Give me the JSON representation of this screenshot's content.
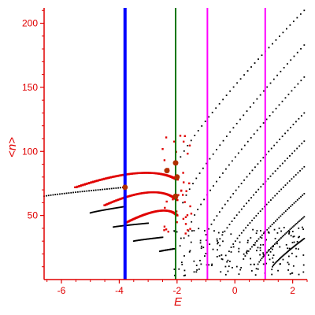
{
  "chart_data": {
    "type": "scatter",
    "title": "",
    "xlabel": "E",
    "ylabel": "<n>",
    "xlim": [
      -6.6,
      2.5
    ],
    "ylim": [
      0,
      212
    ],
    "grid": false,
    "legend": "none",
    "xticks": [
      -6,
      -4,
      -2,
      0,
      2
    ],
    "yticks": [
      50,
      100,
      150,
      200
    ],
    "colors": {
      "axis": "#e00000",
      "series_black": "#000000",
      "series_red": "#e00000",
      "line_blue": "#0000ff",
      "line_green": "#007700",
      "line_magenta": "#ff00ff",
      "marker_brown": "#b03000"
    },
    "vertical_lines": [
      {
        "x": -3.8,
        "color": "#0000ff",
        "width": 4
      },
      {
        "x": -2.05,
        "color": "#007700",
        "width": 2
      },
      {
        "x": -0.95,
        "color": "#ff00ff",
        "width": 2
      },
      {
        "x": 1.05,
        "color": "#ff00ff",
        "width": 2
      }
    ],
    "black_curves": [
      {
        "x0": -6.6,
        "y0": 65,
        "x1": -3.8,
        "y1": 72
      },
      {
        "x0": -5.0,
        "y0": 52,
        "x1": -3.8,
        "y1": 57
      },
      {
        "x0": -4.2,
        "y0": 41,
        "x1": -3.0,
        "y1": 44
      },
      {
        "x0": -3.5,
        "y0": 30,
        "x1": -2.5,
        "y1": 33
      },
      {
        "x0": -2.6,
        "y0": 22,
        "x1": -2.1,
        "y1": 24
      },
      {
        "x0": -2.0,
        "y0": 90,
        "x1": 2.4,
        "y1": 210
      },
      {
        "x0": -1.8,
        "y0": 60,
        "x1": 2.4,
        "y1": 183
      },
      {
        "x0": -1.5,
        "y0": 45,
        "x1": 2.4,
        "y1": 158
      },
      {
        "x0": -1.0,
        "y0": 35,
        "x1": 2.4,
        "y1": 130
      },
      {
        "x0": -0.6,
        "y0": 28,
        "x1": 2.4,
        "y1": 108
      },
      {
        "x0": -0.2,
        "y0": 22,
        "x1": 2.4,
        "y1": 88
      },
      {
        "x0": 0.3,
        "y0": 16,
        "x1": 2.4,
        "y1": 67
      },
      {
        "x0": 0.8,
        "y0": 12,
        "x1": 2.4,
        "y1": 49
      },
      {
        "x0": 1.3,
        "y0": 10,
        "x1": 2.4,
        "y1": 32
      }
    ],
    "red_arcs": [
      {
        "x0": -5.5,
        "y0": 72,
        "xp": -3.0,
        "yp": 91,
        "x1": -2.0,
        "y1": 78
      },
      {
        "x0": -4.5,
        "y0": 58,
        "xp": -2.7,
        "yp": 76,
        "x1": -2.0,
        "y1": 62
      },
      {
        "x0": -3.8,
        "y0": 44,
        "xp": -2.4,
        "yp": 60,
        "x1": -2.0,
        "y1": 50
      }
    ],
    "big_markers": [
      {
        "x": -2.05,
        "y": 91
      },
      {
        "x": -2.05,
        "y": 65
      },
      {
        "x": -2.35,
        "y": 85
      },
      {
        "x": -2.0,
        "y": 80
      },
      {
        "x": -3.8,
        "y": 72
      }
    ]
  }
}
